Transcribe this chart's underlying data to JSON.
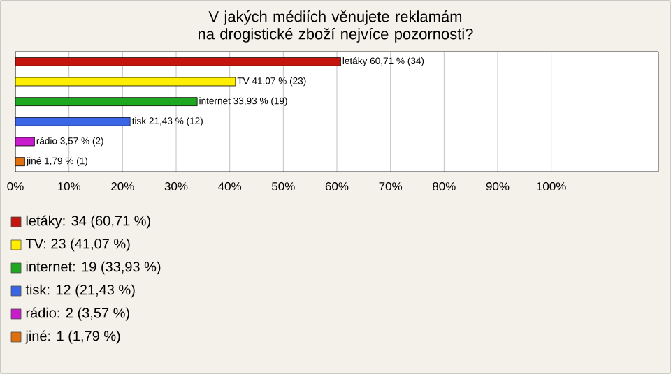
{
  "chart_data": {
    "type": "bar",
    "orientation": "horizontal",
    "title": "V jakých médiích věnujete reklamám na drogistické zboží nejvíce pozornosti?",
    "categories": [
      null,
      null,
      null,
      null,
      null,
      null
    ],
    "values": [
      60.71,
      41.07,
      33.93,
      21.43,
      3.57,
      1.79
    ],
    "value_labels": [
      "letáky 60,71 % (34)",
      "TV 41,07 % (23)",
      "internet 33,93 % (19)",
      "tisk 21,43 % (12)",
      "rádio 3,57 % (2)",
      "jiné 1,79 % (1)"
    ],
    "colors": [
      "#c4140e",
      "#ffee00",
      "#1fa81f",
      "#3a66e6",
      "#c81ccc",
      "#e0700f"
    ],
    "xlim": [
      0,
      120
    ],
    "xticks": [
      {
        "value": 0,
        "label": "0%"
      },
      {
        "value": 10,
        "label": "10%"
      },
      {
        "value": 20,
        "label": "20%"
      },
      {
        "value": 30,
        "label": "30%"
      },
      {
        "value": 40,
        "label": "40%"
      },
      {
        "value": 50,
        "label": "50%"
      },
      {
        "value": 60,
        "label": "60%"
      },
      {
        "value": 70,
        "label": "70%"
      },
      {
        "value": 80,
        "label": "80%"
      },
      {
        "value": 90,
        "label": "90%"
      },
      {
        "value": 100,
        "label": "100%"
      }
    ],
    "grid": "x",
    "tick_labels": "x",
    "annotations": [
      "letáky: 34 (60,71 %)",
      "TV: 23 (41,07 %)",
      "internet: 19 (33,93 %)",
      "tisk: 12 (21,43 %)",
      "rádio: 2 (3,57 %)",
      "jiné: 1 (1,79 %)"
    ]
  }
}
